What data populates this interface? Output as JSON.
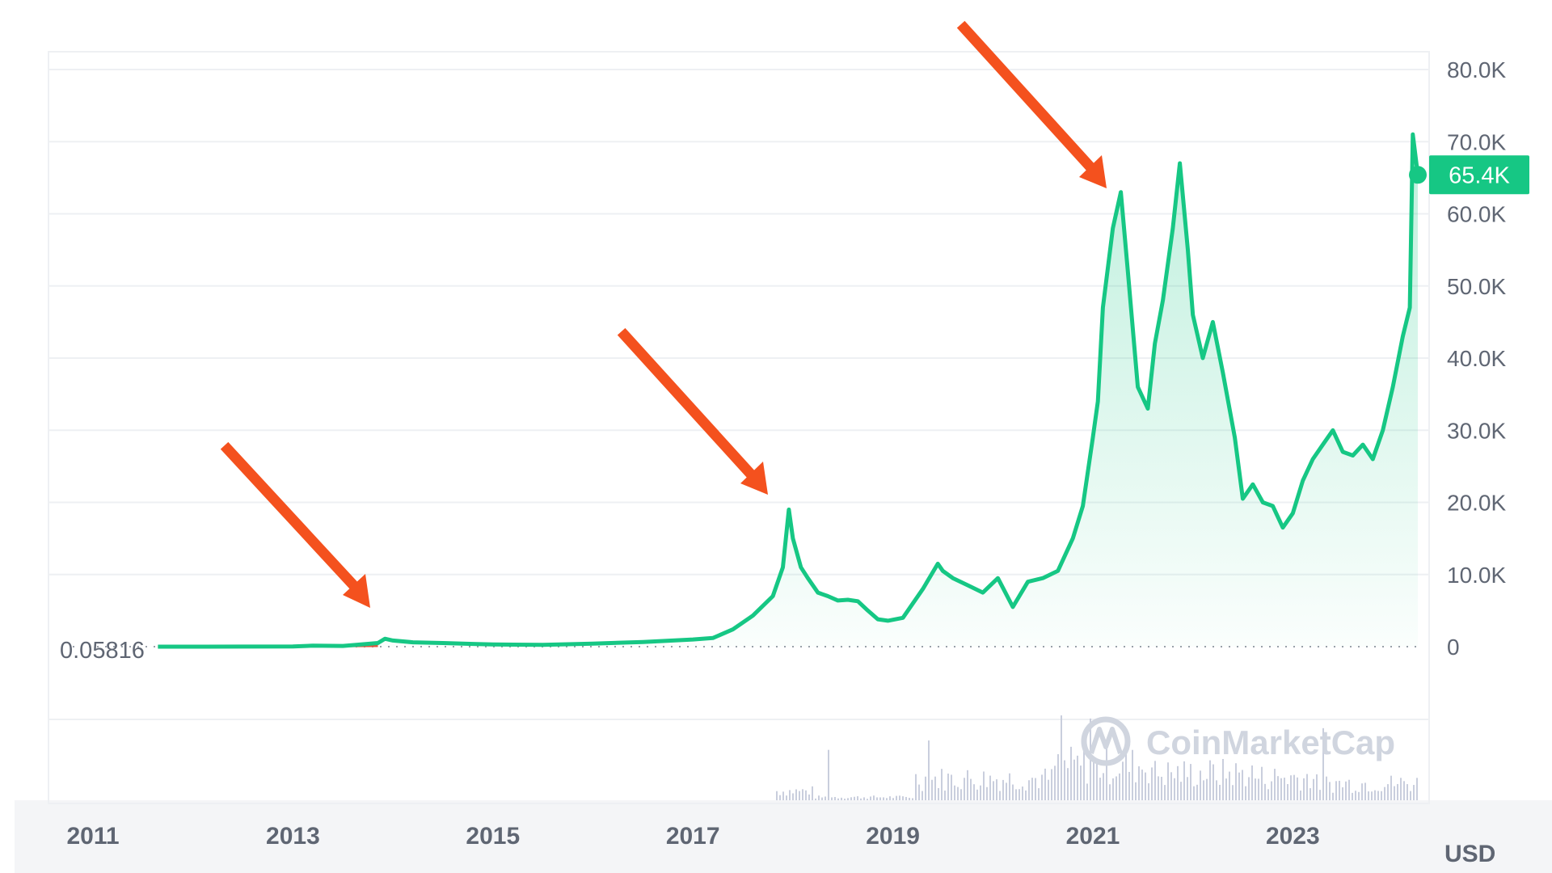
{
  "chart_data": {
    "type": "area",
    "colors": {
      "line": "#16c784",
      "area": "#16c784",
      "grid": "#eef0f3",
      "arrow": "#f4511e",
      "tag_bg": "#16c784",
      "axis_text": "#5f6673"
    },
    "y_axis": {
      "ticks": [
        0,
        10000,
        20000,
        30000,
        40000,
        50000,
        60000,
        70000,
        80000
      ],
      "tick_labels": [
        "0",
        "10.0K",
        "20.0K",
        "30.0K",
        "40.0K",
        "50.0K",
        "60.0K",
        "70.0K",
        "80.0K"
      ],
      "ylim": [
        0,
        80000
      ],
      "side": "right"
    },
    "x_axis": {
      "tick_labels": [
        "2011",
        "2013",
        "2015",
        "2017",
        "2019",
        "2021",
        "2023"
      ],
      "xlim": [
        2011,
        2024.25
      ]
    },
    "currency_label": "USD",
    "baseline_value_label": "0.05816",
    "current_price_label": "65.4K",
    "current_price": 65400,
    "watermark": "CoinMarketCap",
    "series": [
      {
        "x": [
          2011.65,
          2012.5,
          2013.0,
          2013.2,
          2013.5,
          2013.85,
          2013.92,
          2014.0,
          2014.2,
          2014.5,
          2014.8,
          2015.0,
          2015.5,
          2016.0,
          2016.5,
          2017.0,
          2017.2,
          2017.4,
          2017.6,
          2017.8,
          2017.9,
          2017.96,
          2018.0,
          2018.08,
          2018.15,
          2018.25,
          2018.35,
          2018.45,
          2018.55,
          2018.65,
          2018.75,
          2018.85,
          2018.95,
          2019.1,
          2019.3,
          2019.45,
          2019.5,
          2019.6,
          2019.75,
          2019.9,
          2020.05,
          2020.2,
          2020.35,
          2020.5,
          2020.65,
          2020.8,
          2020.9,
          2021.0,
          2021.05,
          2021.1,
          2021.2,
          2021.28,
          2021.35,
          2021.45,
          2021.55,
          2021.62,
          2021.7,
          2021.8,
          2021.87,
          2021.95,
          2022.0,
          2022.1,
          2022.2,
          2022.3,
          2022.42,
          2022.5,
          2022.6,
          2022.7,
          2022.8,
          2022.9,
          2023.0,
          2023.1,
          2023.2,
          2023.3,
          2023.4,
          2023.5,
          2023.6,
          2023.7,
          2023.8,
          2023.9,
          2024.0,
          2024.1,
          2024.17,
          2024.2,
          2024.25
        ],
        "values": [
          5,
          10,
          20,
          140,
          100,
          500,
          1100,
          850,
          600,
          500,
          380,
          300,
          250,
          430,
          650,
          1000,
          1200,
          2400,
          4300,
          7000,
          11000,
          19000,
          15000,
          11000,
          9500,
          7500,
          7000,
          6400,
          6500,
          6300,
          5000,
          3800,
          3600,
          4000,
          8000,
          11500,
          10500,
          9500,
          8500,
          7500,
          9500,
          5500,
          9000,
          9500,
          10500,
          15000,
          19500,
          29000,
          34000,
          47000,
          58000,
          63000,
          52000,
          36000,
          33000,
          42000,
          48000,
          58000,
          67000,
          55000,
          46000,
          40000,
          45000,
          38000,
          29000,
          20500,
          22500,
          20000,
          19500,
          16500,
          18500,
          23000,
          26000,
          28000,
          30000,
          27000,
          26500,
          28000,
          26000,
          30000,
          36000,
          43000,
          47000,
          71000,
          65400
        ]
      }
    ],
    "volume_note": "relative volume bars"
  }
}
